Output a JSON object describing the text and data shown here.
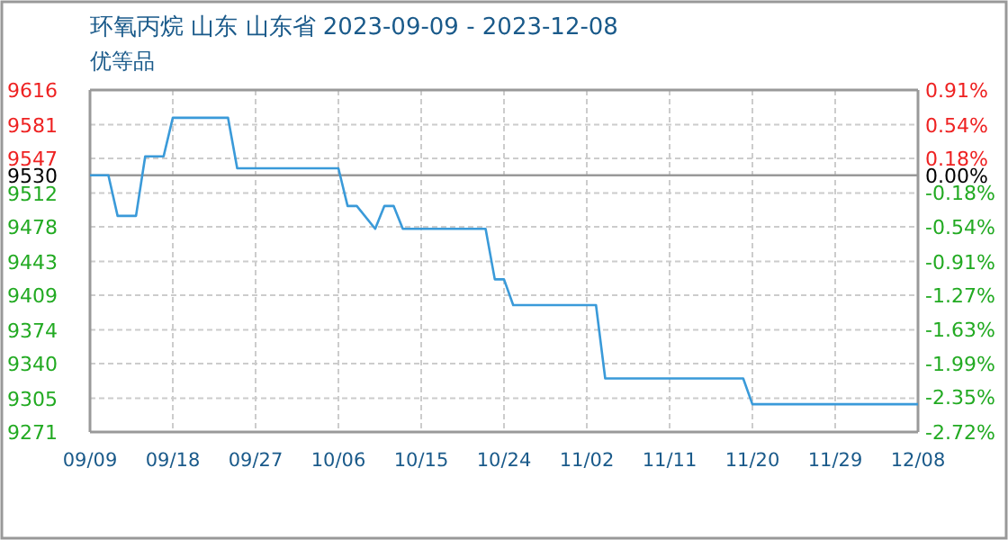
{
  "chart_data": {
    "type": "line",
    "title": "环氧丙烷 山东 山东省 2023-09-09 - 2023-12-08",
    "subtitle": "优等品",
    "x": [
      "2023-09-09",
      "2023-09-11",
      "2023-09-12",
      "2023-09-14",
      "2023-09-15",
      "2023-09-17",
      "2023-09-18",
      "2023-09-24",
      "2023-09-25",
      "2023-10-06",
      "2023-10-07",
      "2023-10-08",
      "2023-10-10",
      "2023-10-11",
      "2023-10-12",
      "2023-10-13",
      "2023-10-22",
      "2023-10-23",
      "2023-10-24",
      "2023-10-25",
      "2023-11-03",
      "2023-11-04",
      "2023-11-19",
      "2023-11-20",
      "2023-12-08"
    ],
    "series": [
      {
        "color": "#3a9ad9",
        "values": [
          9530,
          9530,
          9489,
          9489,
          9549,
          9549,
          9588,
          9588,
          9537,
          9537,
          9499,
          9499,
          9476,
          9499,
          9499,
          9476,
          9476,
          9425,
          9425,
          9399,
          9399,
          9325,
          9325,
          9299,
          9299
        ]
      }
    ],
    "xlim": [
      "2023-09-09",
      "2023-12-08"
    ],
    "xticks": [
      {
        "value": "2023-09-09",
        "label": "09/09"
      },
      {
        "value": "2023-09-18",
        "label": "09/18"
      },
      {
        "value": "2023-09-27",
        "label": "09/27"
      },
      {
        "value": "2023-10-06",
        "label": "10/06"
      },
      {
        "value": "2023-10-15",
        "label": "10/15"
      },
      {
        "value": "2023-10-24",
        "label": "10/24"
      },
      {
        "value": "2023-11-02",
        "label": "11/02"
      },
      {
        "value": "2023-11-11",
        "label": "11/11"
      },
      {
        "value": "2023-11-20",
        "label": "11/20"
      },
      {
        "value": "2023-11-29",
        "label": "11/29"
      },
      {
        "value": "2023-12-08",
        "label": "12/08"
      }
    ],
    "ylim": [
      9271,
      9616
    ],
    "yticks": [
      9616,
      9581,
      9547,
      9512,
      9478,
      9443,
      9409,
      9374,
      9340,
      9305,
      9271
    ],
    "y2lim": [
      -2.72,
      0.91
    ],
    "y2ticks": [
      {
        "value": 0.91,
        "label": "0.91%"
      },
      {
        "value": 0.54,
        "label": "0.54%"
      },
      {
        "value": 0.18,
        "label": "0.18%"
      },
      {
        "value": 0,
        "label": "0.00%"
      },
      {
        "value": -0.18,
        "label": "-0.18%"
      },
      {
        "value": -0.54,
        "label": "-0.54%"
      },
      {
        "value": -0.91,
        "label": "-0.91%"
      },
      {
        "value": -1.27,
        "label": "-1.27%"
      },
      {
        "value": -1.63,
        "label": "-1.63%"
      },
      {
        "value": -1.99,
        "label": "-1.99%"
      },
      {
        "value": -2.35,
        "label": "-2.35%"
      },
      {
        "value": -2.72,
        "label": "-2.72%"
      }
    ],
    "ref_lines": [
      {
        "axis": "y",
        "value": 9530,
        "label": "9530",
        "color": "#999999"
      }
    ],
    "grid": true,
    "marker": "none",
    "line_style": "solid"
  }
}
